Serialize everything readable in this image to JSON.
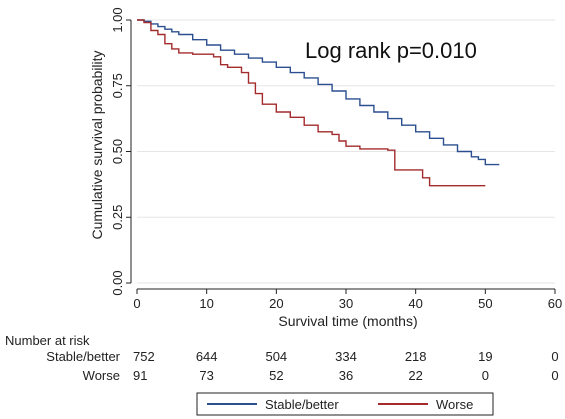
{
  "chart_data": {
    "type": "line",
    "subtype": "kaplan-meier",
    "title": "",
    "xlabel": "Survival time (months)",
    "ylabel": "Cumulative survival probability",
    "xlim": [
      0,
      60
    ],
    "ylim": [
      0,
      1
    ],
    "x_ticks": [
      0,
      10,
      20,
      30,
      40,
      50,
      60
    ],
    "y_ticks": [
      0,
      0.25,
      0.5,
      0.75,
      1
    ],
    "x_tick_labels": [
      "0",
      "10",
      "20",
      "30",
      "40",
      "50",
      "60"
    ],
    "y_tick_labels": [
      "0.00",
      "0.25",
      "0.50",
      "0.75",
      "1.00"
    ],
    "grid": true,
    "annotation": "Log rank p=0.010",
    "series": [
      {
        "name": "Stable/better",
        "color": "#2b4f8f",
        "points": [
          [
            0,
            1.0
          ],
          [
            1,
            0.995
          ],
          [
            2,
            0.985
          ],
          [
            3,
            0.975
          ],
          [
            4,
            0.965
          ],
          [
            5,
            0.955
          ],
          [
            6,
            0.945
          ],
          [
            8,
            0.925
          ],
          [
            10,
            0.905
          ],
          [
            12,
            0.885
          ],
          [
            14,
            0.87
          ],
          [
            16,
            0.855
          ],
          [
            18,
            0.84
          ],
          [
            20,
            0.82
          ],
          [
            22,
            0.8
          ],
          [
            24,
            0.78
          ],
          [
            26,
            0.755
          ],
          [
            28,
            0.73
          ],
          [
            30,
            0.7
          ],
          [
            32,
            0.675
          ],
          [
            34,
            0.65
          ],
          [
            36,
            0.625
          ],
          [
            38,
            0.6
          ],
          [
            40,
            0.575
          ],
          [
            42,
            0.55
          ],
          [
            44,
            0.525
          ],
          [
            46,
            0.5
          ],
          [
            48,
            0.48
          ],
          [
            49,
            0.47
          ],
          [
            50,
            0.45
          ],
          [
            52,
            0.45
          ]
        ]
      },
      {
        "name": "Worse",
        "color": "#a32b2b",
        "points": [
          [
            0,
            1.0
          ],
          [
            1,
            0.99
          ],
          [
            2,
            0.96
          ],
          [
            3,
            0.945
          ],
          [
            4,
            0.91
          ],
          [
            5,
            0.89
          ],
          [
            6,
            0.875
          ],
          [
            8,
            0.87
          ],
          [
            11,
            0.86
          ],
          [
            12,
            0.83
          ],
          [
            13,
            0.82
          ],
          [
            15,
            0.8
          ],
          [
            16,
            0.76
          ],
          [
            17,
            0.72
          ],
          [
            18,
            0.68
          ],
          [
            20,
            0.65
          ],
          [
            22,
            0.63
          ],
          [
            24,
            0.6
          ],
          [
            26,
            0.575
          ],
          [
            28,
            0.565
          ],
          [
            29,
            0.54
          ],
          [
            30,
            0.52
          ],
          [
            32,
            0.51
          ],
          [
            36,
            0.505
          ],
          [
            37,
            0.43
          ],
          [
            41,
            0.4
          ],
          [
            42,
            0.37
          ],
          [
            50,
            0.37
          ]
        ]
      }
    ],
    "risk_table": {
      "heading": "Number at risk",
      "rows": [
        {
          "label": "Stable/better",
          "values": [
            "752",
            "644",
            "504",
            "334",
            "218",
            "19",
            "0"
          ]
        },
        {
          "label": "Worse",
          "values": [
            "91",
            "73",
            "52",
            "36",
            "22",
            "0",
            "0"
          ]
        }
      ]
    },
    "legend": {
      "placement": "bottom",
      "entries": [
        "Stable/better",
        "Worse"
      ]
    }
  }
}
